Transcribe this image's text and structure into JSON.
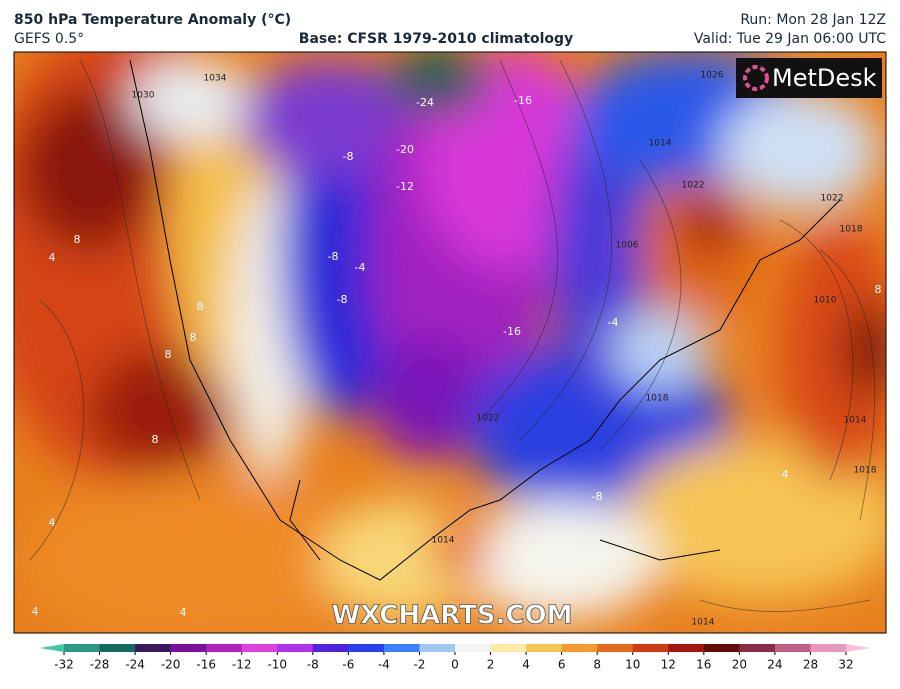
{
  "header": {
    "title": "850 hPa Temperature Anomaly (°C)",
    "model": "GEFS 0.5°",
    "base": "Base: CFSR 1979-2010 climatology",
    "run": "Run: Mon 28 Jan 12Z",
    "valid": "Valid: Tue 29 Jan 06:00 UTC"
  },
  "logo": "MetDesk",
  "watermark": "WXCHARTS.COM",
  "map": {
    "anomaly_labels": [
      "-24",
      "-16",
      "-20",
      "-12",
      "-8",
      "-8",
      "-4",
      "-8",
      "8",
      "4",
      "8",
      "8",
      "8",
      "8",
      "-16",
      "-4",
      "-8",
      "4",
      "4",
      "4",
      "8",
      "4"
    ],
    "pressure_labels": [
      "1030",
      "1034",
      "1026",
      "1014",
      "1022",
      "1006",
      "1022",
      "1018",
      "1010",
      "1018",
      "1022",
      "1014",
      "1018",
      "1014",
      "1014"
    ]
  },
  "colorbar": {
    "ticks": [
      -32,
      -28,
      -24,
      -20,
      -16,
      -12,
      -10,
      -8,
      -6,
      -4,
      -2,
      0,
      2,
      4,
      6,
      8,
      10,
      12,
      16,
      20,
      24,
      28,
      32
    ],
    "colors": [
      "#2a9a86",
      "#136a5e",
      "#3a1a5e",
      "#7a10a0",
      "#b020c0",
      "#e040e0",
      "#b030f0",
      "#5020e0",
      "#2a40f0",
      "#3a80ff",
      "#a0c8f5",
      "#f4f6f4",
      "#fbe9a6",
      "#f8c550",
      "#f59a2a",
      "#e66a1e",
      "#cf3a12",
      "#a4160e",
      "#6a0c0c",
      "#8c2a48",
      "#c05e84",
      "#e898b8"
    ],
    "low_color": "#40c8a0",
    "high_color": "#f6c0d8"
  }
}
